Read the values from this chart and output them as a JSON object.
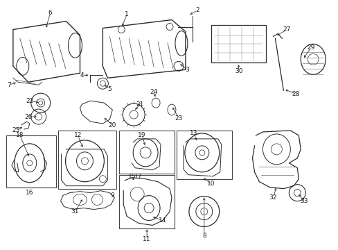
{
  "bg_color": "#ffffff",
  "fig_width": 4.89,
  "fig_height": 3.6,
  "dpi": 100,
  "image_b64": ""
}
